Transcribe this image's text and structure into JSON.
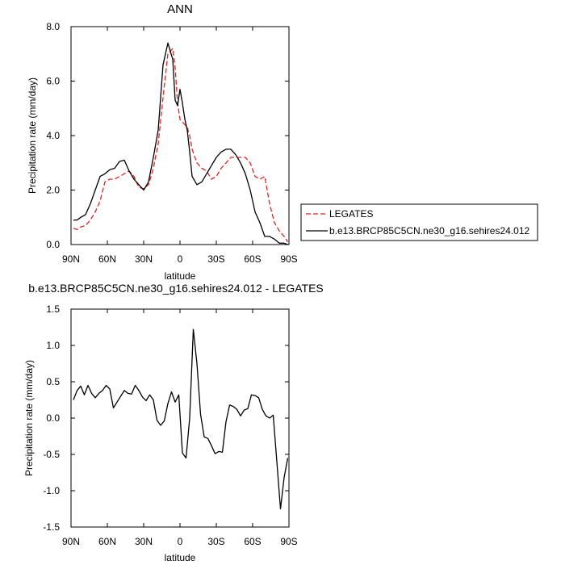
{
  "chart_data": [
    {
      "type": "line",
      "title": "ANN",
      "xlabel": "latitude",
      "ylabel": "Precipitation rate (mm/day)",
      "xlim": [
        90,
        -90
      ],
      "ylim": [
        0,
        8
      ],
      "x_ticks": [
        90,
        60,
        30,
        0,
        -30,
        -60,
        -90
      ],
      "x_tick_labels": [
        "90N",
        "60N",
        "30N",
        "0",
        "30S",
        "60S",
        "90S"
      ],
      "y_ticks": [
        0,
        2,
        4,
        6,
        8
      ],
      "y_tick_labels": [
        "0.0",
        "2.0",
        "4.0",
        "6.0",
        "8.0"
      ],
      "legend_position": "right",
      "colors": {
        "LEGATES": "#e8201e",
        "model": "#000000"
      },
      "series": [
        {
          "name": "LEGATES",
          "style": "dashed",
          "x": [
            88,
            85,
            82,
            78,
            74,
            70,
            66,
            62,
            58,
            54,
            50,
            46,
            42,
            38,
            34,
            30,
            26,
            22,
            18,
            14,
            10,
            6,
            4,
            2,
            0,
            -2,
            -4,
            -6,
            -8,
            -10,
            -14,
            -18,
            -22,
            -26,
            -30,
            -34,
            -38,
            -42,
            -46,
            -50,
            -54,
            -58,
            -62,
            -66,
            -70,
            -74,
            -78,
            -82,
            -86,
            -89
          ],
          "y": [
            0.6,
            0.55,
            0.65,
            0.7,
            0.9,
            1.2,
            1.6,
            2.3,
            2.4,
            2.4,
            2.5,
            2.6,
            2.7,
            2.5,
            2.1,
            2.05,
            2.2,
            2.8,
            3.7,
            5.4,
            7.0,
            7.2,
            6.5,
            5.2,
            4.6,
            4.5,
            4.4,
            4.3,
            4.0,
            3.5,
            3.0,
            2.8,
            2.7,
            2.4,
            2.5,
            2.8,
            3.0,
            3.2,
            3.2,
            3.2,
            3.2,
            3.0,
            2.5,
            2.4,
            2.5,
            1.5,
            0.8,
            0.5,
            0.3,
            0.1
          ]
        },
        {
          "name": "b.e13.BRCP85C5CN.ne30_g16.sehires24.012",
          "style": "solid",
          "x": [
            88,
            85,
            82,
            78,
            74,
            70,
            66,
            62,
            58,
            54,
            50,
            46,
            42,
            38,
            34,
            30,
            26,
            22,
            18,
            14,
            10,
            6,
            4,
            2,
            0,
            -2,
            -4,
            -6,
            -8,
            -10,
            -14,
            -18,
            -22,
            -26,
            -30,
            -34,
            -38,
            -42,
            -46,
            -50,
            -54,
            -58,
            -62,
            -66,
            -70,
            -74,
            -78,
            -82,
            -86,
            -89
          ],
          "y": [
            0.9,
            0.9,
            1.0,
            1.1,
            1.5,
            2.0,
            2.5,
            2.6,
            2.75,
            2.8,
            3.05,
            3.1,
            2.7,
            2.4,
            2.2,
            2.0,
            2.3,
            3.2,
            4.2,
            6.6,
            7.4,
            6.8,
            5.3,
            5.1,
            5.7,
            5.2,
            4.6,
            4.2,
            3.4,
            2.5,
            2.2,
            2.3,
            2.6,
            2.9,
            3.2,
            3.4,
            3.5,
            3.5,
            3.3,
            3.0,
            2.6,
            2.0,
            1.2,
            0.8,
            0.3,
            0.3,
            0.2,
            0.05,
            0.05,
            0.0
          ]
        }
      ]
    },
    {
      "type": "line",
      "title": "b.e13.BRCP85C5CN.ne30_g16.sehires24.012 - LEGATES",
      "xlabel": "latitude",
      "ylabel": "Precipitation rate (mm/day)",
      "xlim": [
        90,
        -90
      ],
      "ylim": [
        -1.5,
        1.5
      ],
      "x_ticks": [
        90,
        60,
        30,
        0,
        -30,
        -60,
        -90
      ],
      "x_tick_labels": [
        "90N",
        "60N",
        "30N",
        "0",
        "30S",
        "60S",
        "90S"
      ],
      "y_ticks": [
        -1.5,
        -1.0,
        -0.5,
        0.0,
        0.5,
        1.0,
        1.5
      ],
      "y_tick_labels": [
        "-1.5",
        "-1.0",
        "-0.5",
        "0.0",
        "0.5",
        "1.0",
        "1.5"
      ],
      "series": [
        {
          "style": "solid",
          "x": [
            88,
            85,
            82,
            79,
            76,
            73,
            70,
            67,
            64,
            61,
            58,
            55,
            52,
            49,
            46,
            43,
            40,
            37,
            34,
            31,
            28,
            25,
            22,
            19,
            16,
            13,
            10,
            7,
            4,
            1,
            -2,
            -5,
            -8,
            -11,
            -14,
            -17,
            -20,
            -23,
            -26,
            -29,
            -32,
            -35,
            -38,
            -41,
            -44,
            -47,
            -50,
            -53,
            -56,
            -59,
            -62,
            -65,
            -68,
            -71,
            -74,
            -77,
            -80,
            -83,
            -86,
            -89
          ],
          "y": [
            0.25,
            0.38,
            0.44,
            0.32,
            0.45,
            0.34,
            0.28,
            0.34,
            0.38,
            0.45,
            0.4,
            0.14,
            0.22,
            0.3,
            0.38,
            0.34,
            0.33,
            0.45,
            0.38,
            0.29,
            0.24,
            0.32,
            0.25,
            -0.03,
            -0.1,
            -0.04,
            0.2,
            0.36,
            0.22,
            0.32,
            -0.48,
            -0.55,
            0.0,
            1.22,
            0.75,
            0.05,
            -0.26,
            -0.28,
            -0.38,
            -0.49,
            -0.46,
            -0.47,
            -0.05,
            0.18,
            0.16,
            0.12,
            0.03,
            0.11,
            0.13,
            0.32,
            0.31,
            0.28,
            0.12,
            0.03,
            0.0,
            0.04,
            -0.6,
            -1.25,
            -0.82,
            -0.55
          ]
        }
      ]
    }
  ]
}
